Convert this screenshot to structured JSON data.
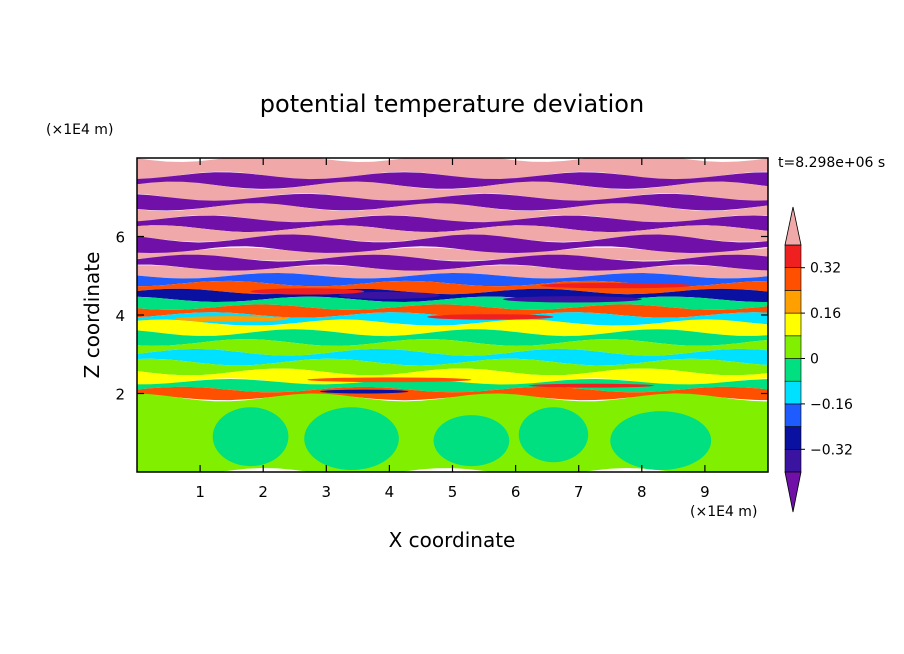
{
  "chart_data": {
    "type": "heatmap",
    "title": "potential temperature deviation",
    "xlabel": "X coordinate",
    "ylabel": "Z coordinate",
    "x_unit": "(×1E4 m)",
    "y_unit": "(×1E4 m)",
    "time_label": "t=8.298e+06 s",
    "xlim": [
      0,
      10
    ],
    "ylim": [
      0,
      8
    ],
    "x_ticks": [
      1,
      2,
      3,
      4,
      5,
      6,
      7,
      8,
      9
    ],
    "x_tick_labels": [
      "1",
      "2",
      "3",
      "4",
      "5",
      "6",
      "7",
      "8",
      "9"
    ],
    "y_ticks": [
      2,
      4,
      6
    ],
    "y_tick_labels": [
      "2",
      "4",
      "6"
    ],
    "colorbar": {
      "levels": [
        -0.4,
        -0.32,
        -0.24,
        -0.16,
        -0.08,
        0,
        0.08,
        0.16,
        0.24,
        0.32,
        0.4
      ],
      "tick_values": [
        0.32,
        0.16,
        0,
        -0.16,
        -0.32
      ],
      "tick_labels": [
        "0.32",
        "0.16",
        "0",
        "−0.16",
        "−0.32"
      ],
      "colors": [
        "#7010a8",
        "#3a14a0",
        "#0a10a0",
        "#1e5cff",
        "#00e0ff",
        "#00e080",
        "#80f000",
        "#ffff00",
        "#ffa000",
        "#ff5000",
        "#f02020",
        "#f0a8a8"
      ],
      "extend": "both"
    },
    "bands": [
      {
        "z0": 7.55,
        "z1": 8.0,
        "level": 11
      },
      {
        "z0": 7.3,
        "z1": 7.55,
        "level": 0
      },
      {
        "z0": 7.0,
        "z1": 7.3,
        "level": 11
      },
      {
        "z0": 6.75,
        "z1": 7.0,
        "level": 0
      },
      {
        "z0": 6.45,
        "z1": 6.75,
        "level": 11
      },
      {
        "z0": 6.2,
        "z1": 6.45,
        "level": 0
      },
      {
        "z0": 5.95,
        "z1": 6.2,
        "level": 11
      },
      {
        "z0": 5.65,
        "z1": 5.95,
        "level": 0
      },
      {
        "z0": 5.45,
        "z1": 5.65,
        "level": 11
      },
      {
        "z0": 5.2,
        "z1": 5.45,
        "level": 0
      },
      {
        "z0": 5.0,
        "z1": 5.2,
        "level": 11
      },
      {
        "z0": 4.8,
        "z1": 5.0,
        "level": 3
      },
      {
        "z0": 4.6,
        "z1": 4.8,
        "level": 9
      },
      {
        "z0": 4.4,
        "z1": 4.6,
        "level": 2
      },
      {
        "z0": 4.2,
        "z1": 4.4,
        "level": 5
      },
      {
        "z0": 4.0,
        "z1": 4.2,
        "level": 9
      },
      {
        "z0": 3.8,
        "z1": 4.0,
        "level": 4
      },
      {
        "z0": 3.55,
        "z1": 3.8,
        "level": 7
      },
      {
        "z0": 3.3,
        "z1": 3.55,
        "level": 5
      },
      {
        "z0": 3.05,
        "z1": 3.3,
        "level": 6
      },
      {
        "z0": 2.8,
        "z1": 3.05,
        "level": 4
      },
      {
        "z0": 2.55,
        "z1": 2.8,
        "level": 6
      },
      {
        "z0": 2.3,
        "z1": 2.55,
        "level": 7
      },
      {
        "z0": 2.1,
        "z1": 2.3,
        "level": 5
      },
      {
        "z0": 1.9,
        "z1": 2.1,
        "level": 9
      },
      {
        "z0": 0.0,
        "z1": 1.9,
        "level": 6
      }
    ],
    "features": [
      {
        "x": 1.8,
        "z": 0.9,
        "rx": 0.6,
        "rz": 0.75,
        "level": 5
      },
      {
        "x": 3.4,
        "z": 0.85,
        "rx": 0.75,
        "rz": 0.8,
        "level": 5
      },
      {
        "x": 5.3,
        "z": 0.8,
        "rx": 0.6,
        "rz": 0.65,
        "level": 5
      },
      {
        "x": 6.6,
        "z": 0.95,
        "rx": 0.55,
        "rz": 0.7,
        "level": 5
      },
      {
        "x": 8.3,
        "z": 0.8,
        "rx": 0.8,
        "rz": 0.75,
        "level": 5
      },
      {
        "x": 4.0,
        "z": 4.5,
        "rx": 0.8,
        "rz": 0.09,
        "level": 1
      },
      {
        "x": 6.9,
        "z": 4.4,
        "rx": 1.1,
        "rz": 0.08,
        "level": 1
      },
      {
        "x": 2.7,
        "z": 4.6,
        "rx": 0.9,
        "rz": 0.08,
        "level": 10
      },
      {
        "x": 7.6,
        "z": 4.75,
        "rx": 1.2,
        "rz": 0.07,
        "level": 10
      },
      {
        "x": 5.6,
        "z": 3.95,
        "rx": 1.0,
        "rz": 0.07,
        "level": 10
      },
      {
        "x": 4.0,
        "z": 2.35,
        "rx": 1.3,
        "rz": 0.06,
        "level": 9
      },
      {
        "x": 7.2,
        "z": 2.2,
        "rx": 1.0,
        "rz": 0.05,
        "level": 10
      },
      {
        "x": 3.6,
        "z": 2.05,
        "rx": 0.7,
        "rz": 0.05,
        "level": 2
      },
      {
        "x": 1.5,
        "z": 3.9,
        "rx": 0.9,
        "rz": 0.07,
        "level": 8
      }
    ]
  }
}
